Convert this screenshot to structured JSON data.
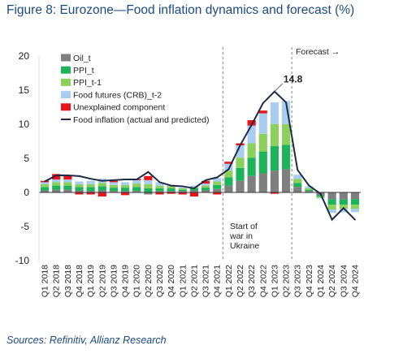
{
  "figure": {
    "title": "Figure 8: Eurozone—Food inflation dynamics and forecast (%)",
    "source": "Sources: Refinitiv, Allianz Research"
  },
  "chart_data": {
    "type": "bar",
    "stacked": true,
    "title": "Figure 8: Eurozone—Food inflation dynamics and forecast (%)",
    "xlabel": "",
    "ylabel": "",
    "ylim": [
      -10,
      20
    ],
    "yticks": [
      20,
      15,
      10,
      5,
      0,
      -5,
      -10
    ],
    "grid": false,
    "legend_position": "top-left",
    "categories": [
      "Q1 2018",
      "Q2 2018",
      "Q3 2018",
      "Q4 2018",
      "Q1 2019",
      "Q2 2019",
      "Q3 2019",
      "Q4 2019",
      "Q1 2020",
      "Q2 2020",
      "Q3 2020",
      "Q4 2020",
      "Q1 2021",
      "Q2 2021",
      "Q3 2021",
      "Q4 2021",
      "Q1 2022",
      "Q2 2022",
      "Q3 2022",
      "Q4 2022",
      "Q1 2023",
      "Q2 2023",
      "Q3 2023",
      "Q4 2023",
      "Q1 2024",
      "Q2 2024",
      "Q3 2024",
      "Q4 2024"
    ],
    "series": [
      {
        "name": "Oil_t",
        "color": "#7f7f7f",
        "values": [
          0.3,
          0.4,
          0.4,
          0.3,
          0.2,
          0.3,
          0.2,
          0.2,
          0.2,
          -0.3,
          0.2,
          0.2,
          0.2,
          0.3,
          0.3,
          0.5,
          1.0,
          1.7,
          2.4,
          2.8,
          3.2,
          3.4,
          0.8,
          0.2,
          -0.4,
          -1.0,
          -1.0,
          -1.0
        ]
      },
      {
        "name": "PPI_t",
        "color": "#1db35a",
        "values": [
          0.5,
          0.6,
          0.6,
          0.5,
          0.6,
          0.6,
          0.5,
          0.5,
          0.6,
          0.6,
          0.4,
          0.4,
          0.2,
          0.3,
          0.4,
          0.6,
          1.2,
          1.9,
          2.7,
          3.2,
          3.6,
          3.6,
          0.6,
          0.2,
          -0.2,
          -0.8,
          -0.8,
          -0.8
        ]
      },
      {
        "name": "PPI_t-1",
        "color": "#8bd05a",
        "values": [
          0.4,
          0.5,
          0.5,
          0.4,
          0.4,
          0.5,
          0.4,
          0.4,
          0.5,
          0.6,
          0.4,
          0.3,
          0.2,
          0.2,
          0.3,
          0.5,
          1.0,
          1.5,
          2.1,
          2.6,
          3.2,
          3.0,
          0.6,
          0.2,
          -0.2,
          -0.7,
          -0.6,
          -0.6
        ]
      },
      {
        "name": "Food futures (CRB)_t-2",
        "color": "#a8cdf0",
        "values": [
          0.3,
          0.4,
          0.4,
          0.4,
          0.5,
          0.6,
          0.4,
          0.4,
          0.5,
          0.6,
          0.5,
          0.2,
          0.1,
          0.2,
          0.3,
          0.5,
          1.0,
          1.8,
          2.6,
          3.0,
          3.2,
          3.4,
          0.6,
          0.3,
          -0.1,
          -0.5,
          -0.5,
          -0.5
        ]
      },
      {
        "name": "Unexplained component",
        "color": "#e8141c",
        "values": [
          0.2,
          0.8,
          0.6,
          -0.3,
          -0.3,
          -0.6,
          0.2,
          -0.4,
          0.2,
          0.6,
          -0.3,
          -0.2,
          -0.3,
          -0.6,
          0.4,
          -0.3,
          0.3,
          0.3,
          0.8,
          0.4,
          -0.2,
          0.0,
          0.0,
          0.0,
          0.0,
          0.0,
          0.0,
          0.0
        ]
      },
      {
        "name": "Food inflation (actual and predicted)",
        "color": "#1f2a44",
        "kind": "line",
        "values": [
          1.6,
          2.5,
          2.5,
          2.4,
          2.0,
          1.7,
          1.8,
          1.9,
          1.9,
          3.0,
          1.5,
          1.0,
          0.9,
          0.6,
          1.8,
          2.2,
          3.4,
          6.9,
          9.9,
          13.1,
          14.8,
          13.2,
          3.3,
          1.0,
          -0.2,
          -4.0,
          -2.3,
          -4.0
        ]
      }
    ],
    "annotations": {
      "peak_label": "14.8",
      "forecast_label": "Forecast →",
      "war_label": [
        "Start of",
        "war in",
        "Ukraine"
      ],
      "war_after_category": "Q4 2021",
      "forecast_after_category": "Q2 2023"
    }
  }
}
